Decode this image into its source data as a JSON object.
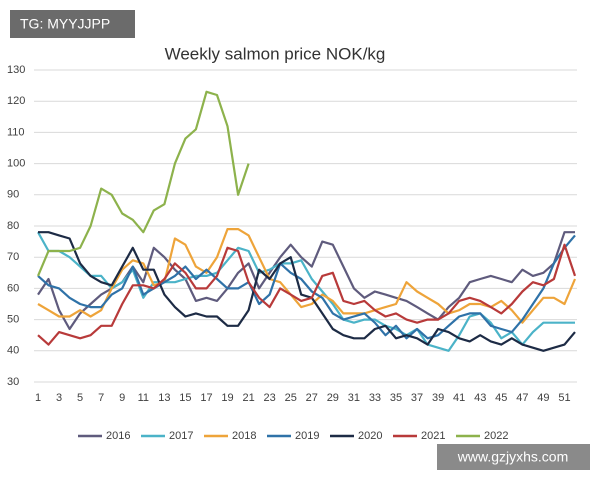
{
  "chart_data": {
    "type": "line",
    "title": "Weekly salmon price NOK/kg",
    "watermarks": [
      "TG: MYYJJPP",
      "www.gzjyxhs.com"
    ],
    "x": [
      1,
      2,
      3,
      4,
      5,
      6,
      7,
      8,
      9,
      10,
      11,
      12,
      13,
      14,
      15,
      16,
      17,
      18,
      19,
      20,
      21,
      22,
      23,
      24,
      25,
      26,
      27,
      28,
      29,
      30,
      31,
      32,
      33,
      34,
      35,
      36,
      37,
      38,
      39,
      40,
      41,
      42,
      43,
      44,
      45,
      46,
      47,
      48,
      49,
      50,
      51,
      52
    ],
    "xlim": [
      1,
      52
    ],
    "xticks": [
      1,
      3,
      5,
      7,
      9,
      11,
      13,
      15,
      17,
      19,
      21,
      23,
      25,
      27,
      29,
      31,
      33,
      35,
      37,
      39,
      41,
      43,
      45,
      47,
      49,
      51
    ],
    "ylim": [
      30,
      130
    ],
    "yticks": [
      30,
      40,
      50,
      60,
      70,
      80,
      90,
      100,
      110,
      120,
      130
    ],
    "grid": true,
    "legend": "bottom",
    "series": [
      {
        "name": "2016",
        "color": "#5f5b7d",
        "values": [
          58,
          63,
          53,
          47,
          52,
          55,
          58,
          60,
          62,
          67,
          62,
          73,
          70,
          66,
          63,
          56,
          57,
          56,
          60,
          65,
          68,
          60,
          65,
          70,
          74,
          70,
          67,
          75,
          74,
          67,
          60,
          57,
          59,
          58,
          57,
          56,
          54,
          52,
          50,
          54,
          57,
          62,
          63,
          64,
          63,
          62,
          66,
          64,
          65,
          68,
          78,
          78
        ]
      },
      {
        "name": "2017",
        "color": "#4bb3c8",
        "values": [
          78,
          72,
          72,
          70,
          67,
          64,
          64,
          60,
          62,
          66,
          57,
          62,
          62,
          62,
          63,
          64,
          64,
          65,
          69,
          73,
          72,
          65,
          66,
          68,
          68,
          69,
          63,
          59,
          55,
          50,
          49,
          50,
          50,
          48,
          47,
          45,
          47,
          42,
          41,
          40,
          45,
          51,
          52,
          49,
          44,
          46,
          42,
          46,
          49,
          49,
          49,
          49
        ]
      },
      {
        "name": "2018",
        "color": "#eea43a",
        "values": [
          55,
          53,
          51,
          51,
          53,
          51,
          53,
          60,
          66,
          69,
          68,
          61,
          62,
          76,
          74,
          67,
          65,
          70,
          79,
          79,
          77,
          70,
          63,
          62,
          58,
          54,
          55,
          58,
          56,
          52,
          52,
          52,
          53,
          54,
          55,
          62,
          59,
          57,
          55,
          52,
          53,
          55,
          55,
          54,
          56,
          53,
          49,
          53,
          57,
          57,
          55,
          63
        ]
      },
      {
        "name": "2019",
        "color": "#2f72a8",
        "values": [
          64,
          61,
          60,
          57,
          55,
          54,
          54,
          58,
          60,
          67,
          58,
          60,
          62,
          64,
          67,
          63,
          66,
          63,
          60,
          60,
          62,
          55,
          58,
          68,
          65,
          63,
          59,
          57,
          52,
          50,
          51,
          52,
          49,
          45,
          48,
          44,
          47,
          44,
          45,
          48,
          51,
          52,
          52,
          48,
          47,
          46,
          50,
          55,
          60,
          68,
          73,
          77
        ]
      },
      {
        "name": "2020",
        "color": "#1d2b45",
        "values": [
          78,
          78,
          77,
          76,
          68,
          64,
          62,
          61,
          67,
          73,
          66,
          66,
          58,
          54,
          51,
          52,
          51,
          51,
          48,
          48,
          53,
          66,
          63,
          68,
          70,
          58,
          57,
          52,
          47,
          45,
          44,
          44,
          47,
          48,
          44,
          45,
          44,
          42,
          47,
          46,
          44,
          43,
          45,
          43,
          42,
          44,
          42,
          41,
          40,
          41,
          42,
          46
        ]
      },
      {
        "name": "2021",
        "color": "#b83a3a",
        "values": [
          45,
          42,
          46,
          45,
          44,
          45,
          48,
          48,
          55,
          61,
          61,
          60,
          63,
          68,
          65,
          60,
          60,
          64,
          73,
          72,
          62,
          57,
          54,
          60,
          58,
          56,
          57,
          64,
          65,
          56,
          55,
          56,
          53,
          51,
          52,
          50,
          49,
          50,
          50,
          52,
          56,
          57,
          56,
          54,
          52,
          55,
          59,
          62,
          61,
          63,
          74,
          64
        ]
      },
      {
        "name": "2022",
        "color": "#8db24c",
        "values": [
          64,
          72,
          72,
          72,
          73,
          80,
          92,
          90,
          84,
          82,
          78,
          85,
          87,
          100,
          108,
          111,
          123,
          122,
          112,
          90,
          100,
          null,
          null,
          null,
          null,
          null,
          null,
          null,
          null,
          null,
          null,
          null,
          null,
          null,
          null,
          null,
          null,
          null,
          null,
          null,
          null,
          null,
          null,
          null,
          null,
          null,
          null,
          null,
          null,
          null,
          null,
          null
        ]
      }
    ]
  }
}
